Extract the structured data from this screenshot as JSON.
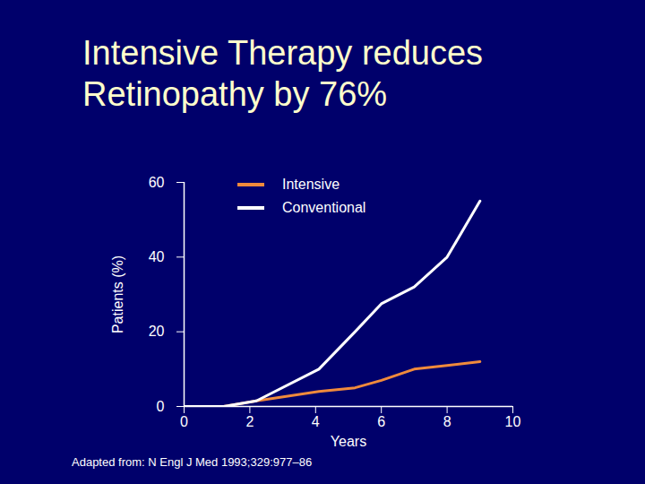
{
  "chart_data": {
    "type": "line",
    "title": "Intensive Therapy reduces Retinopathy by 76%",
    "x_label": "Years",
    "y_label": "Patients (%)",
    "caption": "Adapted from: N Engl J Med 1993;329:977–86",
    "x": [
      0,
      1.2,
      2.2,
      4.1,
      5.2,
      6,
      7,
      8,
      9
    ],
    "series": [
      {
        "name": "Intensive",
        "color": "#f08a3c",
        "values": [
          0,
          0,
          1.5,
          4,
          5,
          7,
          10,
          11,
          12
        ]
      },
      {
        "name": "Conventional",
        "color": "#ffffff",
        "values": [
          0,
          0,
          1.5,
          10,
          20,
          27.5,
          32,
          40,
          55
        ]
      }
    ],
    "xlim": [
      0,
      10
    ],
    "xticks": [
      0,
      2,
      4,
      6,
      8,
      10
    ],
    "ylim": [
      0,
      60
    ],
    "yticks": [
      0,
      20,
      40,
      60
    ],
    "legend": "top"
  }
}
